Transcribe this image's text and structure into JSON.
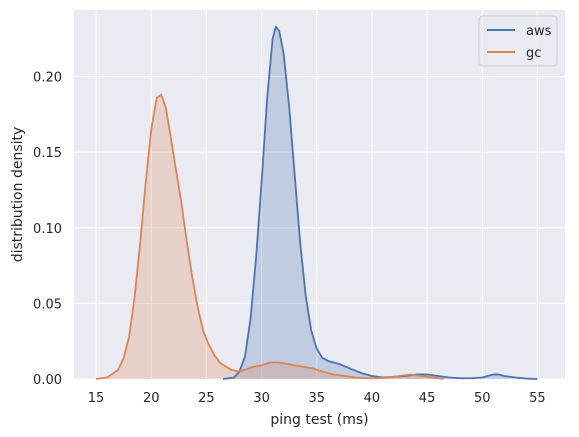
{
  "chart_data": {
    "type": "area",
    "title": "",
    "xlabel": "ping test (ms)",
    "ylabel": "distribution density",
    "xlim": [
      13,
      57.5
    ],
    "ylim": [
      0,
      0.244
    ],
    "xticks": [
      15,
      20,
      25,
      30,
      35,
      40,
      45,
      50,
      55
    ],
    "yticks": [
      0.0,
      0.05,
      0.1,
      0.15,
      0.2
    ],
    "ytick_labels": [
      "0.00",
      "0.05",
      "0.10",
      "0.15",
      "0.20"
    ],
    "grid": true,
    "legend_position": "top-right",
    "series": [
      {
        "name": "aws",
        "color": "#4c72b0",
        "x": [
          26.5,
          27.5,
          28.0,
          28.5,
          29.0,
          29.5,
          30.0,
          30.5,
          31.0,
          31.3,
          31.6,
          32.0,
          32.5,
          33.0,
          33.5,
          34.0,
          34.5,
          35.0,
          35.5,
          36.0,
          36.5,
          37.0,
          38.0,
          39.0,
          40.0,
          41.0,
          42.0,
          43.0,
          44.0,
          45.0,
          46.0,
          47.0,
          48.0,
          49.0,
          50.0,
          51.0,
          51.5,
          52.0,
          53.0,
          54.0,
          55.0
        ],
        "y": [
          0.0,
          0.001,
          0.005,
          0.015,
          0.04,
          0.08,
          0.13,
          0.185,
          0.225,
          0.233,
          0.23,
          0.215,
          0.18,
          0.135,
          0.09,
          0.055,
          0.032,
          0.02,
          0.014,
          0.012,
          0.011,
          0.01,
          0.007,
          0.004,
          0.002,
          0.001,
          0.0015,
          0.002,
          0.003,
          0.003,
          0.002,
          0.001,
          0.0005,
          0.0005,
          0.001,
          0.003,
          0.003,
          0.002,
          0.001,
          0.0003,
          0.0
        ]
      },
      {
        "name": "gc",
        "color": "#dd8452",
        "x": [
          15.0,
          16.0,
          17.0,
          17.5,
          18.0,
          18.5,
          19.0,
          19.5,
          20.0,
          20.5,
          20.9,
          21.3,
          21.7,
          22.2,
          22.7,
          23.2,
          23.7,
          24.2,
          24.7,
          25.2,
          25.7,
          26.2,
          26.8,
          27.3,
          27.8,
          28.5,
          29.2,
          30.0,
          30.8,
          31.5,
          32.3,
          33.0,
          33.8,
          34.6,
          35.5,
          36.5,
          37.5,
          38.5,
          39.5,
          40.5,
          41.5,
          42.5,
          43.5,
          44.5,
          45.5,
          46.5
        ],
        "y": [
          0.0,
          0.001,
          0.006,
          0.014,
          0.028,
          0.055,
          0.09,
          0.13,
          0.165,
          0.186,
          0.188,
          0.18,
          0.163,
          0.14,
          0.118,
          0.092,
          0.068,
          0.048,
          0.032,
          0.023,
          0.016,
          0.011,
          0.008,
          0.006,
          0.005,
          0.006,
          0.008,
          0.009,
          0.011,
          0.011,
          0.01,
          0.009,
          0.008,
          0.007,
          0.005,
          0.003,
          0.002,
          0.001,
          0.0005,
          0.0005,
          0.001,
          0.002,
          0.003,
          0.002,
          0.001,
          0.0
        ]
      }
    ]
  }
}
